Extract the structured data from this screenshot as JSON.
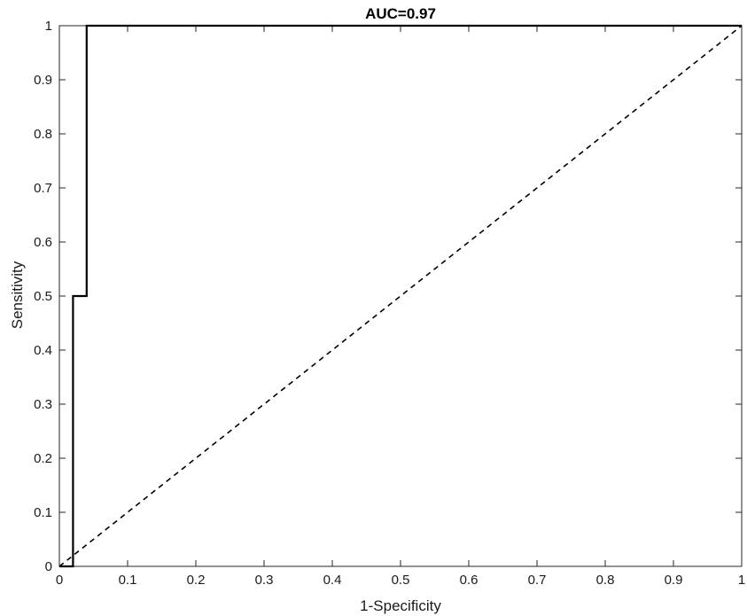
{
  "chart_data": {
    "type": "line",
    "title": "AUC=0.97",
    "xlabel": "1-Specificity",
    "ylabel": "Sensitivity",
    "xlim": [
      0,
      1
    ],
    "ylim": [
      0,
      1
    ],
    "x_ticks": [
      "0",
      "0.1",
      "0.2",
      "0.3",
      "0.4",
      "0.5",
      "0.6",
      "0.7",
      "0.8",
      "0.9",
      "1"
    ],
    "y_ticks": [
      "0",
      "0.1",
      "0.2",
      "0.3",
      "0.4",
      "0.5",
      "0.6",
      "0.7",
      "0.8",
      "0.9",
      "1"
    ],
    "grid": false,
    "legend": "none",
    "series": [
      {
        "style": "solid",
        "color": "#000000",
        "x": [
          0,
          0.02,
          0.02,
          0.04,
          0.04,
          1
        ],
        "y": [
          0,
          0,
          0.5,
          0.5,
          1,
          1
        ]
      },
      {
        "style": "dashed",
        "color": "#000000",
        "x": [
          0,
          1
        ],
        "y": [
          0,
          1
        ]
      }
    ]
  }
}
